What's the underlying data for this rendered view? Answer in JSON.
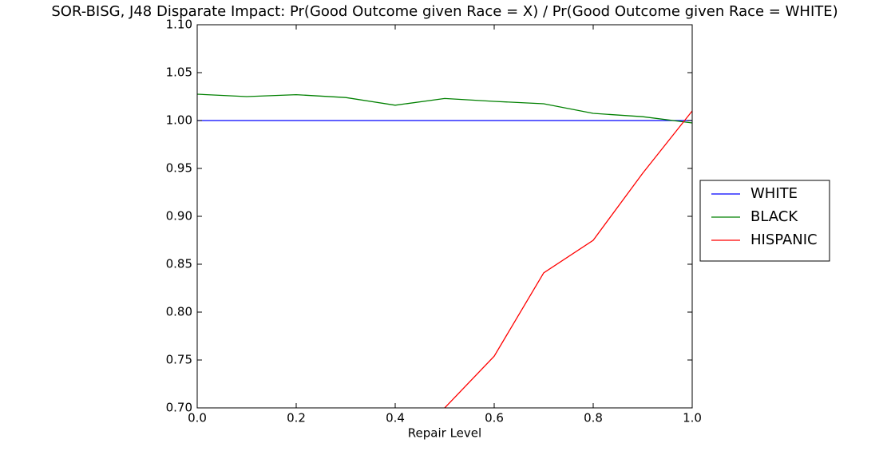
{
  "chart_data": {
    "type": "line",
    "title": "SOR-BISG, J48 Disparate Impact: Pr(Good Outcome given Race = X) / Pr(Good Outcome given Race = WHITE)",
    "x_label": "Repair Level",
    "x": [
      0,
      0.1,
      0.2,
      0.3,
      0.4,
      0.5,
      0.6,
      0.7,
      0.8,
      0.9,
      1.0
    ],
    "series": [
      {
        "name": "WHITE",
        "color": "#0000ff",
        "values": [
          1,
          1,
          1,
          1,
          1,
          1,
          1,
          1,
          1,
          1,
          1
        ]
      },
      {
        "name": "BLACK",
        "color": "#008000",
        "values": [
          1.0275,
          1.025,
          1.027,
          1.024,
          1.016,
          1.023,
          1.02,
          1.0175,
          1.0075,
          1.004,
          0.9975
        ]
      },
      {
        "name": "HISPANIC",
        "color": "#ff0000",
        "values": [
          null,
          null,
          null,
          null,
          null,
          0.7,
          0.754,
          0.841,
          0.875,
          0.945,
          1.01
        ]
      }
    ],
    "xlim": [
      0,
      1.0
    ],
    "xticks": [
      {
        "value": 0,
        "label": "0.0"
      },
      {
        "value": 0.2,
        "label": "0.2"
      },
      {
        "value": 0.4,
        "label": "0.4"
      },
      {
        "value": 0.6,
        "label": "0.6"
      },
      {
        "value": 0.8,
        "label": "0.8"
      },
      {
        "value": 1.0,
        "label": "1.0"
      }
    ],
    "ylim": [
      0.7,
      1.1
    ],
    "yticks": [
      {
        "value": 0.7,
        "label": "0.70"
      },
      {
        "value": 0.75,
        "label": "0.75"
      },
      {
        "value": 0.8,
        "label": "0.80"
      },
      {
        "value": 0.85,
        "label": "0.85"
      },
      {
        "value": 0.9,
        "label": "0.90"
      },
      {
        "value": 0.95,
        "label": "0.95"
      },
      {
        "value": 1.0,
        "label": "1.00"
      },
      {
        "value": 1.05,
        "label": "1.05"
      },
      {
        "value": 1.1,
        "label": "1.10"
      }
    ],
    "grid": false,
    "legend": "outside-right"
  }
}
